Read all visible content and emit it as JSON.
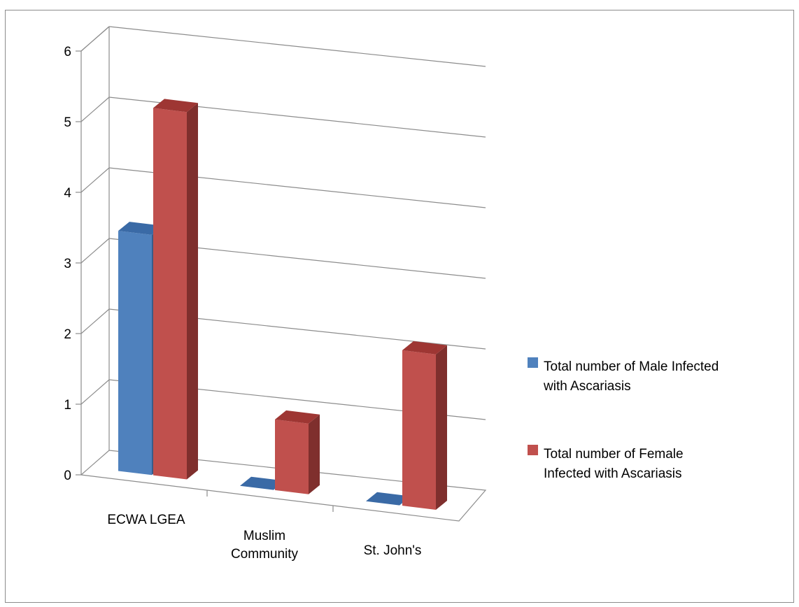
{
  "chart_data": {
    "type": "bar",
    "three_d": true,
    "categories": [
      [
        "ECWA LGEA"
      ],
      [
        "Muslim",
        "Community"
      ],
      [
        "St. John's"
      ]
    ],
    "series": [
      {
        "name": [
          "Total number of Male Infected",
          "with Ascariasis"
        ],
        "values": [
          3.4,
          0,
          0
        ],
        "color": "#4F81BD",
        "side_color": "#385D8A",
        "top_color": "#3A6AA6"
      },
      {
        "name": [
          "Total number of Female",
          "Infected with Ascariasis"
        ],
        "values": [
          5.2,
          1.0,
          2.2
        ],
        "color": "#C0504D",
        "side_color": "#7F2F2D",
        "top_color": "#9E3633"
      }
    ],
    "yticks": [
      "0",
      "1",
      "2",
      "3",
      "4",
      "5",
      "6"
    ],
    "ylim": [
      0,
      6
    ],
    "grid": true,
    "legend_position": "right",
    "title": "",
    "xlabel": "",
    "ylabel": ""
  }
}
